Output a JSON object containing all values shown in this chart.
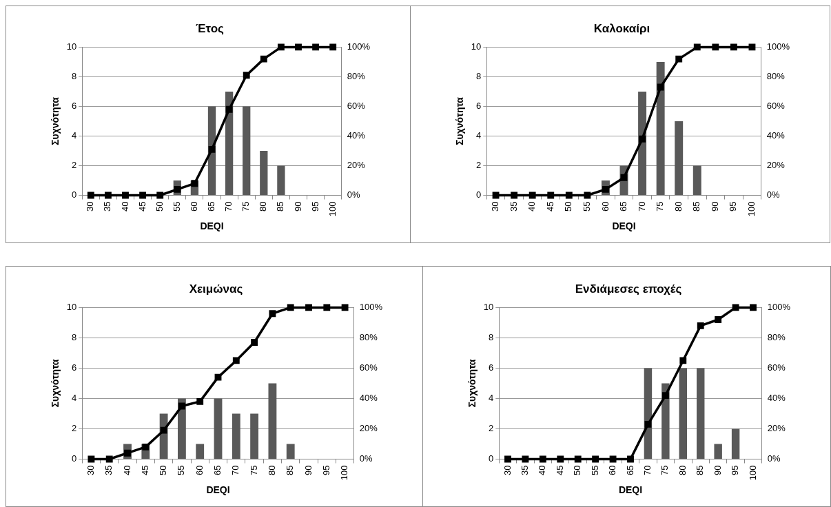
{
  "chart_data": [
    {
      "type": "bar",
      "title": "Έτος",
      "xlabel": "DEQI",
      "ylabel": "Συχνότητα",
      "categories": [
        "30",
        "35",
        "40",
        "45",
        "50",
        "55",
        "60",
        "65",
        "70",
        "75",
        "80",
        "85",
        "90",
        "95",
        "100"
      ],
      "ylim": [
        0,
        10
      ],
      "yticks": [
        0,
        2,
        4,
        6,
        8,
        10
      ],
      "y2lim": [
        0,
        100
      ],
      "y2ticks": [
        {
          "value": 0,
          "label": "0%"
        },
        {
          "value": 20,
          "label": "20%"
        },
        {
          "value": 40,
          "label": "40%"
        },
        {
          "value": 60,
          "label": "60%"
        },
        {
          "value": 80,
          "label": "80%"
        },
        {
          "value": 100,
          "label": "100%"
        }
      ],
      "grid": "y",
      "legend": false,
      "marker": "square",
      "line_style": "solid",
      "series": [
        {
          "color": "#595959",
          "values": [
            0,
            0,
            0,
            0,
            0,
            1,
            1,
            6,
            7,
            6,
            3,
            2,
            0,
            0,
            0
          ]
        },
        {
          "type": "line",
          "axis": "y2",
          "color": "#000000",
          "values": [
            0,
            0,
            0,
            0,
            0,
            4,
            8,
            31,
            58,
            81,
            92,
            100,
            100,
            100,
            100
          ]
        }
      ]
    },
    {
      "type": "bar",
      "title": "Καλοκαίρι",
      "xlabel": "DEQI",
      "ylabel": "Συχνότητα",
      "categories": [
        "30",
        "35",
        "40",
        "45",
        "50",
        "55",
        "60",
        "65",
        "70",
        "75",
        "80",
        "85",
        "90",
        "95",
        "100"
      ],
      "ylim": [
        0,
        10
      ],
      "yticks": [
        0,
        2,
        4,
        6,
        8,
        10
      ],
      "y2lim": [
        0,
        100
      ],
      "y2ticks": [
        {
          "value": 0,
          "label": "0%"
        },
        {
          "value": 20,
          "label": "20%"
        },
        {
          "value": 40,
          "label": "40%"
        },
        {
          "value": 60,
          "label": "60%"
        },
        {
          "value": 80,
          "label": "80%"
        },
        {
          "value": 100,
          "label": "100%"
        }
      ],
      "grid": "y",
      "legend": false,
      "marker": "square",
      "line_style": "solid",
      "series": [
        {
          "color": "#595959",
          "values": [
            0,
            0,
            0,
            0,
            0,
            0,
            1,
            2,
            7,
            9,
            5,
            2,
            0,
            0,
            0
          ]
        },
        {
          "type": "line",
          "axis": "y2",
          "color": "#000000",
          "values": [
            0,
            0,
            0,
            0,
            0,
            0,
            4,
            12,
            38,
            73,
            92,
            100,
            100,
            100,
            100
          ]
        }
      ]
    },
    {
      "type": "bar",
      "title": "Χειμώνας",
      "xlabel": "DEQI",
      "ylabel": "Συχνότητα",
      "categories": [
        "30",
        "35",
        "40",
        "45",
        "50",
        "55",
        "60",
        "65",
        "70",
        "75",
        "80",
        "85",
        "90",
        "95",
        "100"
      ],
      "ylim": [
        0,
        10
      ],
      "yticks": [
        0,
        2,
        4,
        6,
        8,
        10
      ],
      "y2lim": [
        0,
        100
      ],
      "y2ticks": [
        {
          "value": 0,
          "label": "0%"
        },
        {
          "value": 20,
          "label": "20%"
        },
        {
          "value": 40,
          "label": "40%"
        },
        {
          "value": 60,
          "label": "60%"
        },
        {
          "value": 80,
          "label": "80%"
        },
        {
          "value": 100,
          "label": "100%"
        }
      ],
      "grid": "y",
      "legend": false,
      "marker": "square",
      "line_style": "solid",
      "series": [
        {
          "color": "#595959",
          "values": [
            0,
            0,
            1,
            1,
            3,
            4,
            1,
            4,
            3,
            3,
            5,
            1,
            0,
            0,
            0
          ]
        },
        {
          "type": "line",
          "axis": "y2",
          "color": "#000000",
          "values": [
            0,
            0,
            4,
            8,
            19,
            35,
            38,
            54,
            65,
            77,
            96,
            100,
            100,
            100,
            100
          ]
        }
      ]
    },
    {
      "type": "bar",
      "title": "Ενδιάμεσες εποχές",
      "xlabel": "DEQI",
      "ylabel": "Συχνότητα",
      "categories": [
        "30",
        "35",
        "40",
        "45",
        "50",
        "55",
        "60",
        "65",
        "70",
        "75",
        "80",
        "85",
        "90",
        "95",
        "100"
      ],
      "ylim": [
        0,
        10
      ],
      "yticks": [
        0,
        2,
        4,
        6,
        8,
        10
      ],
      "y2lim": [
        0,
        100
      ],
      "y2ticks": [
        {
          "value": 0,
          "label": "0%"
        },
        {
          "value": 20,
          "label": "20%"
        },
        {
          "value": 40,
          "label": "40%"
        },
        {
          "value": 60,
          "label": "60%"
        },
        {
          "value": 80,
          "label": "80%"
        },
        {
          "value": 100,
          "label": "100%"
        }
      ],
      "grid": "y",
      "legend": false,
      "marker": "square",
      "line_style": "solid",
      "series": [
        {
          "color": "#595959",
          "values": [
            0,
            0,
            0,
            0,
            0,
            0,
            0,
            0,
            6,
            5,
            6,
            6,
            1,
            2,
            0
          ]
        },
        {
          "type": "line",
          "axis": "y2",
          "color": "#000000",
          "values": [
            0,
            0,
            0,
            0,
            0,
            0,
            0,
            0,
            23,
            42,
            65,
            88,
            92,
            100,
            100
          ]
        }
      ]
    }
  ]
}
